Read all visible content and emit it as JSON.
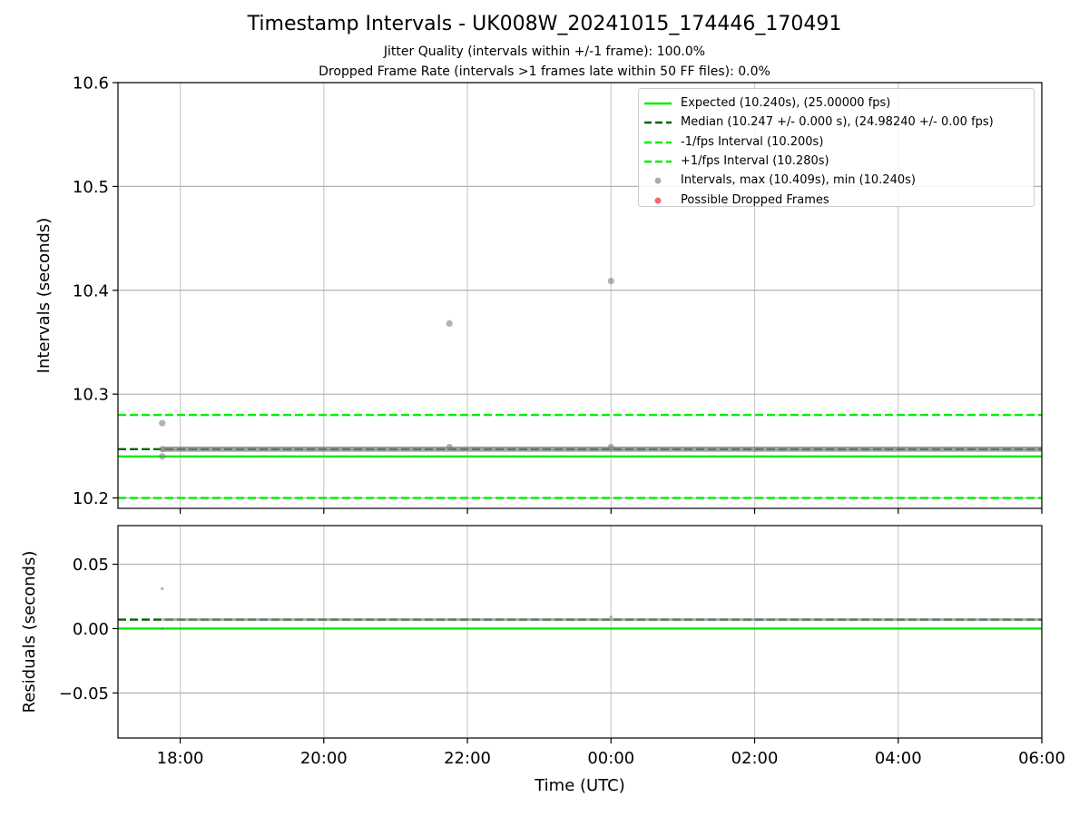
{
  "figure": {
    "title": "Timestamp Intervals - UK008W_20241015_174446_170491",
    "subtitle_jitter": "Jitter Quality (intervals within +/-1 frame): 100.0%",
    "subtitle_dropped": "Dropped Frame Rate (intervals >1 frames late within 50 FF files): 0.0%"
  },
  "colors": {
    "expected": "#00ee00",
    "median": "#006400",
    "bound": "#00ee00",
    "intervals": "#808080",
    "dropped": "#ee3333",
    "grid": "#cccccc"
  },
  "legend": [
    {
      "label": "Expected (10.240s), (25.00000 fps)",
      "kind": "solid",
      "color": "#00ee00"
    },
    {
      "label": "Median (10.247 +/- 0.000 s), (24.98240 +/- 0.00 fps)",
      "kind": "dashed",
      "color": "#006400"
    },
    {
      "label": "-1/fps Interval (10.200s)",
      "kind": "dashed",
      "color": "#00ee00"
    },
    {
      "label": "+1/fps Interval (10.280s)",
      "kind": "dashed",
      "color": "#00ee00"
    },
    {
      "label": "Intervals, max (10.409s), min (10.240s)",
      "kind": "dot",
      "color": "#999999"
    },
    {
      "label": "Possible Dropped Frames",
      "kind": "dot",
      "color": "#ee4444"
    }
  ],
  "chart_data": [
    {
      "type": "scatter",
      "ylabel": "Intervals (seconds)",
      "ylim": [
        10.19,
        10.6
      ],
      "yticks": [
        10.2,
        10.3,
        10.4,
        10.5,
        10.6
      ],
      "ytick_labels": [
        "10.2",
        "10.3",
        "10.4",
        "10.5",
        "10.6"
      ],
      "x_range": [
        "17:08",
        "06:00"
      ],
      "xticks": [
        "18:00",
        "20:00",
        "22:00",
        "00:00",
        "02:00",
        "04:00",
        "06:00"
      ],
      "grid": true,
      "legend_position": "top-right",
      "hlines": [
        {
          "name": "Expected",
          "y": 10.24,
          "style": "solid"
        },
        {
          "name": "Median",
          "y": 10.247,
          "style": "dashed"
        },
        {
          "name": "-1/fps Interval",
          "y": 10.2,
          "style": "dashed"
        },
        {
          "name": "+1/fps Interval",
          "y": 10.28,
          "style": "dashed"
        }
      ],
      "series": [
        {
          "name": "Intervals",
          "band": {
            "x_start": "17:45",
            "x_end": "06:00",
            "y": 10.247
          },
          "points": [
            {
              "x": "17:45",
              "y": 10.272
            },
            {
              "x": "17:45",
              "y": 10.247
            },
            {
              "x": "17:45",
              "y": 10.24
            },
            {
              "x": "21:45",
              "y": 10.368
            },
            {
              "x": "21:45",
              "y": 10.249
            },
            {
              "x": "00:00",
              "y": 10.409
            },
            {
              "x": "00:00",
              "y": 10.249
            }
          ]
        },
        {
          "name": "Possible Dropped Frames",
          "points": []
        }
      ]
    },
    {
      "type": "scatter",
      "xlabel": "Time (UTC)",
      "ylabel": "Residuals (seconds)",
      "ylim": [
        -0.085,
        0.08
      ],
      "yticks": [
        0.05,
        0.0,
        -0.05
      ],
      "ytick_labels": [
        "0.05",
        "0.00",
        "−0.05"
      ],
      "x_range": [
        "17:08",
        "06:00"
      ],
      "xticks": [
        "18:00",
        "20:00",
        "22:00",
        "00:00",
        "02:00",
        "04:00",
        "06:00"
      ],
      "grid": true,
      "hlines": [
        {
          "name": "Zero",
          "y": 0.0,
          "style": "solid"
        },
        {
          "name": "Median residual",
          "y": 0.007,
          "style": "dashed"
        }
      ],
      "series": [
        {
          "name": "Residuals",
          "band": {
            "x_start": "17:45",
            "x_end": "06:00",
            "y": 0.007
          },
          "points": [
            {
              "x": "17:45",
              "y": 0.031
            },
            {
              "x": "17:45",
              "y": 0.0
            },
            {
              "x": "00:00",
              "y": 0.009
            }
          ]
        }
      ]
    }
  ]
}
